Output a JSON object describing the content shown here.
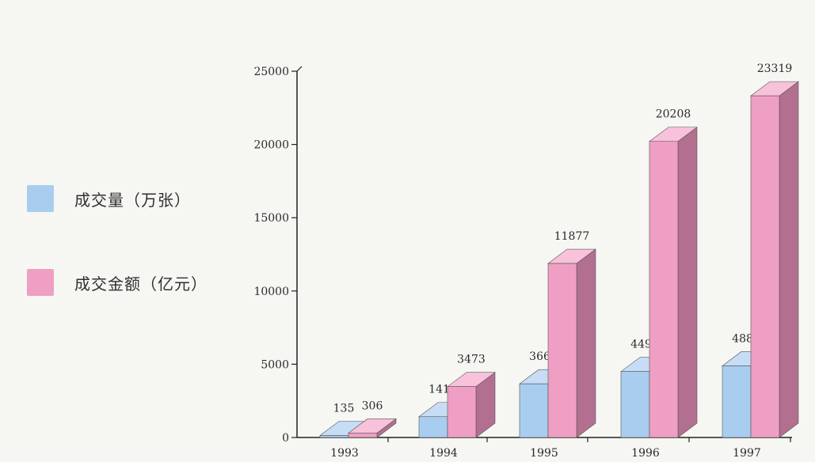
{
  "colors": {
    "background": "#f6f7f2",
    "volume_front": "#a9cdef",
    "volume_top": "#c6ddf5",
    "volume_side": "#7fa4c8",
    "amount_front": "#ef9fc4",
    "amount_top": "#f7c2da",
    "amount_side": "#b36f90",
    "axis": "#222222"
  },
  "chart_data": {
    "type": "bar",
    "style": "3d-grouped",
    "categories": [
      "1993",
      "1994",
      "1995",
      "1996",
      "1997"
    ],
    "series": [
      {
        "name": "成交量（万张）",
        "values": [
          135,
          1418,
          3660,
          4498,
          4888
        ],
        "labels": [
          "135",
          "1418",
          "3660",
          "4498",
          "4888"
        ]
      },
      {
        "name": "成交金额（亿元）",
        "values": [
          306,
          3473,
          11877,
          20208,
          23319
        ],
        "labels": [
          "306",
          "3473",
          "11877",
          "20208",
          "23319"
        ]
      }
    ],
    "yticks": [
      "0",
      "5000",
      "10000",
      "15000",
      "20000",
      "25000"
    ],
    "ylim": [
      0,
      25000
    ],
    "grid": false,
    "legend_position": "left"
  }
}
